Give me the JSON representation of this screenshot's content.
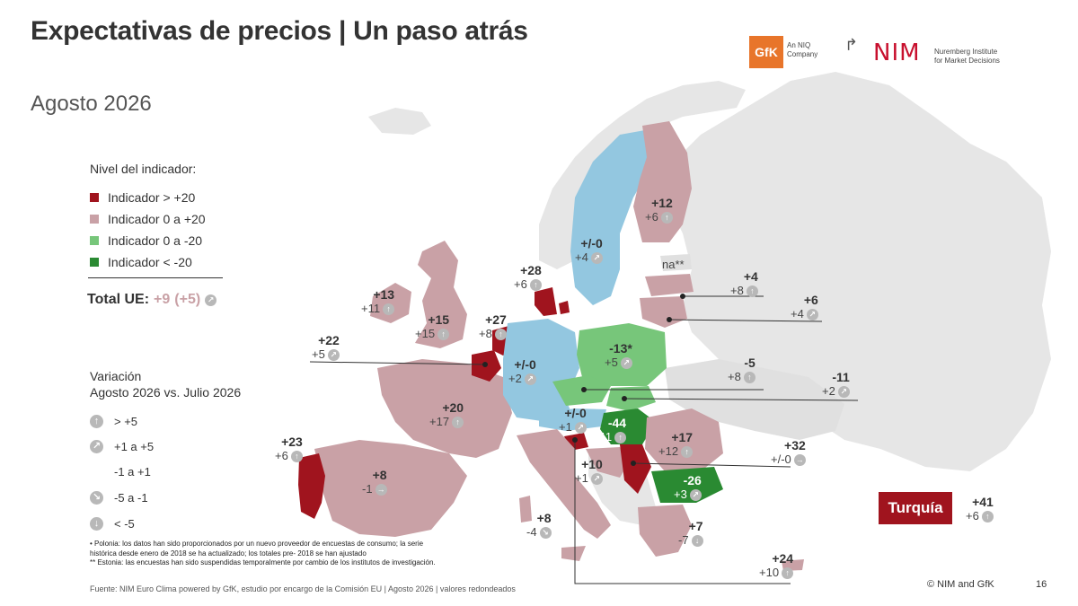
{
  "title": "Expectativas de precios | Un paso atrás",
  "subtitle": "Agosto 2026",
  "colors": {
    "dark_red": "#a0141e",
    "pink": "#c9a1a6",
    "light_green": "#77c67a",
    "dark_green": "#2a8a32",
    "blue": "#93c7e0",
    "grey": "#dedede"
  },
  "logos": {
    "gfk": "GfK",
    "gfk_sub1": "An NIQ",
    "gfk_sub2": "Company",
    "nim": "NIM",
    "nim_sub1": "Nuremberg Institute",
    "nim_sub2": "for Market Decisions"
  },
  "legend": {
    "heading": "Nivel del indicador:",
    "items": [
      {
        "label": "Indicador > +20",
        "color": "#a0141e"
      },
      {
        "label": "Indicador 0 a +20",
        "color": "#c9a1a6"
      },
      {
        "label": "Indicador 0 a -20",
        "color": "#77c67a"
      },
      {
        "label": "Indicador < -20",
        "color": "#2a8a32"
      }
    ]
  },
  "total": {
    "label": "Total UE:",
    "value": "+9",
    "change": "(+5)"
  },
  "variation": {
    "heading1": "Variación",
    "heading2": "Agosto 2026 vs. Julio 2026",
    "items": [
      {
        "label": "> +5",
        "icon": "arrow-up-icon"
      },
      {
        "label": "+1 a +5",
        "icon": "arrow-up-right-icon"
      },
      {
        "label": "-1 a +1",
        "icon": "no-icon"
      },
      {
        "label": "-5 a -1",
        "icon": "arrow-down-right-icon"
      },
      {
        "label": "< -5",
        "icon": "arrow-down-icon"
      }
    ]
  },
  "countries": [
    {
      "value": "+13",
      "change": "+11",
      "arrow": "↑"
    },
    {
      "value": "+15",
      "change": "+15",
      "arrow": "↑"
    },
    {
      "value": "+22",
      "change": "+5",
      "arrow": "↗"
    },
    {
      "value": "+27",
      "change": "+8",
      "arrow": "↑"
    },
    {
      "value": "+28",
      "change": "+6",
      "arrow": "↑"
    },
    {
      "value": "+/-0",
      "change": "+4",
      "arrow": "↗"
    },
    {
      "value": "+12",
      "change": "+6",
      "arrow": "↑"
    },
    {
      "value": "na**",
      "change": "",
      "arrow": ""
    },
    {
      "value": "+4",
      "change": "+8",
      "arrow": "↑"
    },
    {
      "value": "+6",
      "change": "+4",
      "arrow": "↗"
    },
    {
      "value": "-13*",
      "change": "+5",
      "arrow": "↗"
    },
    {
      "value": "+/-0",
      "change": "+2",
      "arrow": "↗"
    },
    {
      "value": "-5",
      "change": "+8",
      "arrow": "↑"
    },
    {
      "value": "-11",
      "change": "+2",
      "arrow": "↗"
    },
    {
      "value": "+20",
      "change": "+17",
      "arrow": "↑"
    },
    {
      "value": "+/-0",
      "change": "+1",
      "arrow": "↗"
    },
    {
      "value": "-44",
      "change": "+11",
      "arrow": "↑"
    },
    {
      "value": "+17",
      "change": "+12",
      "arrow": "↑"
    },
    {
      "value": "+32",
      "change": "+/-0",
      "arrow": "→"
    },
    {
      "value": "+23",
      "change": "+6",
      "arrow": "↑"
    },
    {
      "value": "+8",
      "change": "-1",
      "arrow": "→"
    },
    {
      "value": "+10",
      "change": "+1",
      "arrow": "↗"
    },
    {
      "value": "-26",
      "change": "+3",
      "arrow": "↗"
    },
    {
      "value": "+8",
      "change": "-4",
      "arrow": "↘"
    },
    {
      "value": "+7",
      "change": "-7",
      "arrow": "↓"
    },
    {
      "value": "+24",
      "change": "+10",
      "arrow": "↑"
    },
    {
      "value": "+41",
      "change": "+6",
      "arrow": "↑"
    }
  ],
  "turkey_label": "Turquía",
  "notes": [
    "•    Polonia: los datos han sido proporcionados por un nuevo proveedor de encuestas de consumo; la serie",
    "     histórica desde enero de 2018  se ha actualizado; los totales pre- 2018 se han ajustado",
    "**   Estonia: las encuestas han sido suspendidas temporalmente por cambio de los institutos de investigación."
  ],
  "source": "Fuente: NIM Euro Clima powered by GfK, estudio por encargo de la Comisión EU | Agosto 2026 | valores redondeados",
  "copyright": "© NIM and GfK",
  "page": "16"
}
